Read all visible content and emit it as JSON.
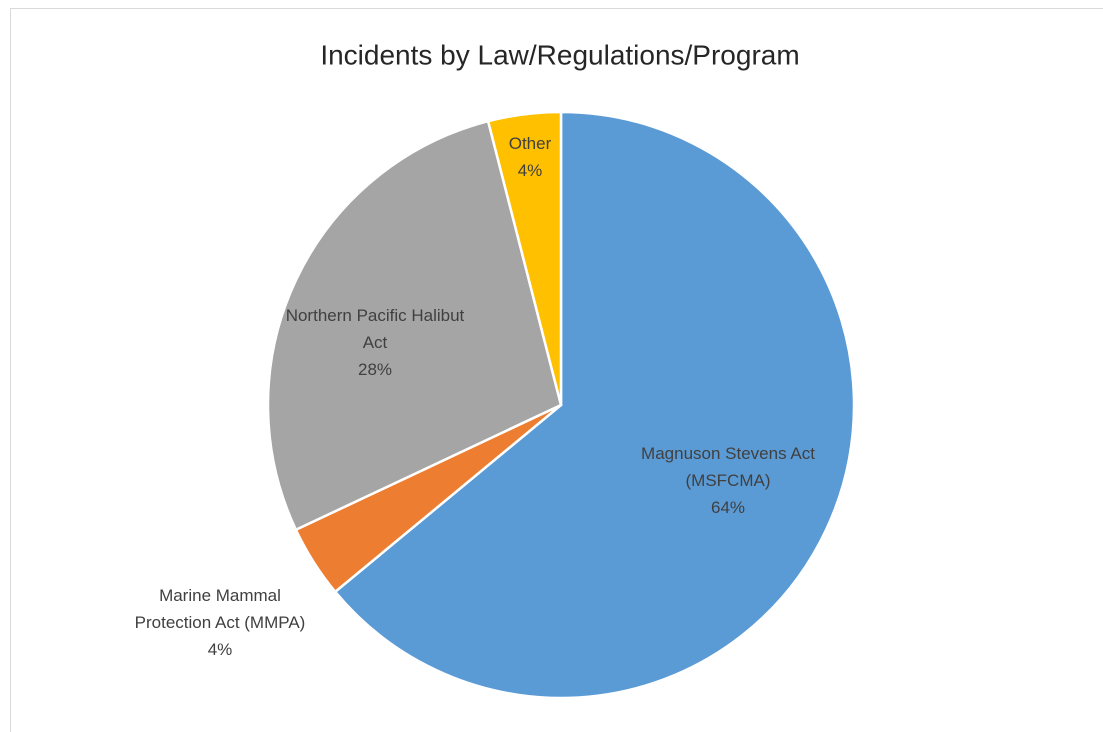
{
  "chart_data": {
    "type": "pie",
    "title": "Incidents by Law/Regulations/Program",
    "categories": [
      "Magnuson Stevens Act (MSFCMA)",
      "Marine Mammal Protection Act (MMPA)",
      "Northern Pacific Halibut Act",
      "Other"
    ],
    "values": [
      64,
      4,
      28,
      4
    ],
    "value_labels": [
      "64%",
      "4%",
      "28%",
      "4%"
    ],
    "colors": [
      "#5b9bd5",
      "#ed7d31",
      "#a5a5a5",
      "#ffc000"
    ]
  }
}
